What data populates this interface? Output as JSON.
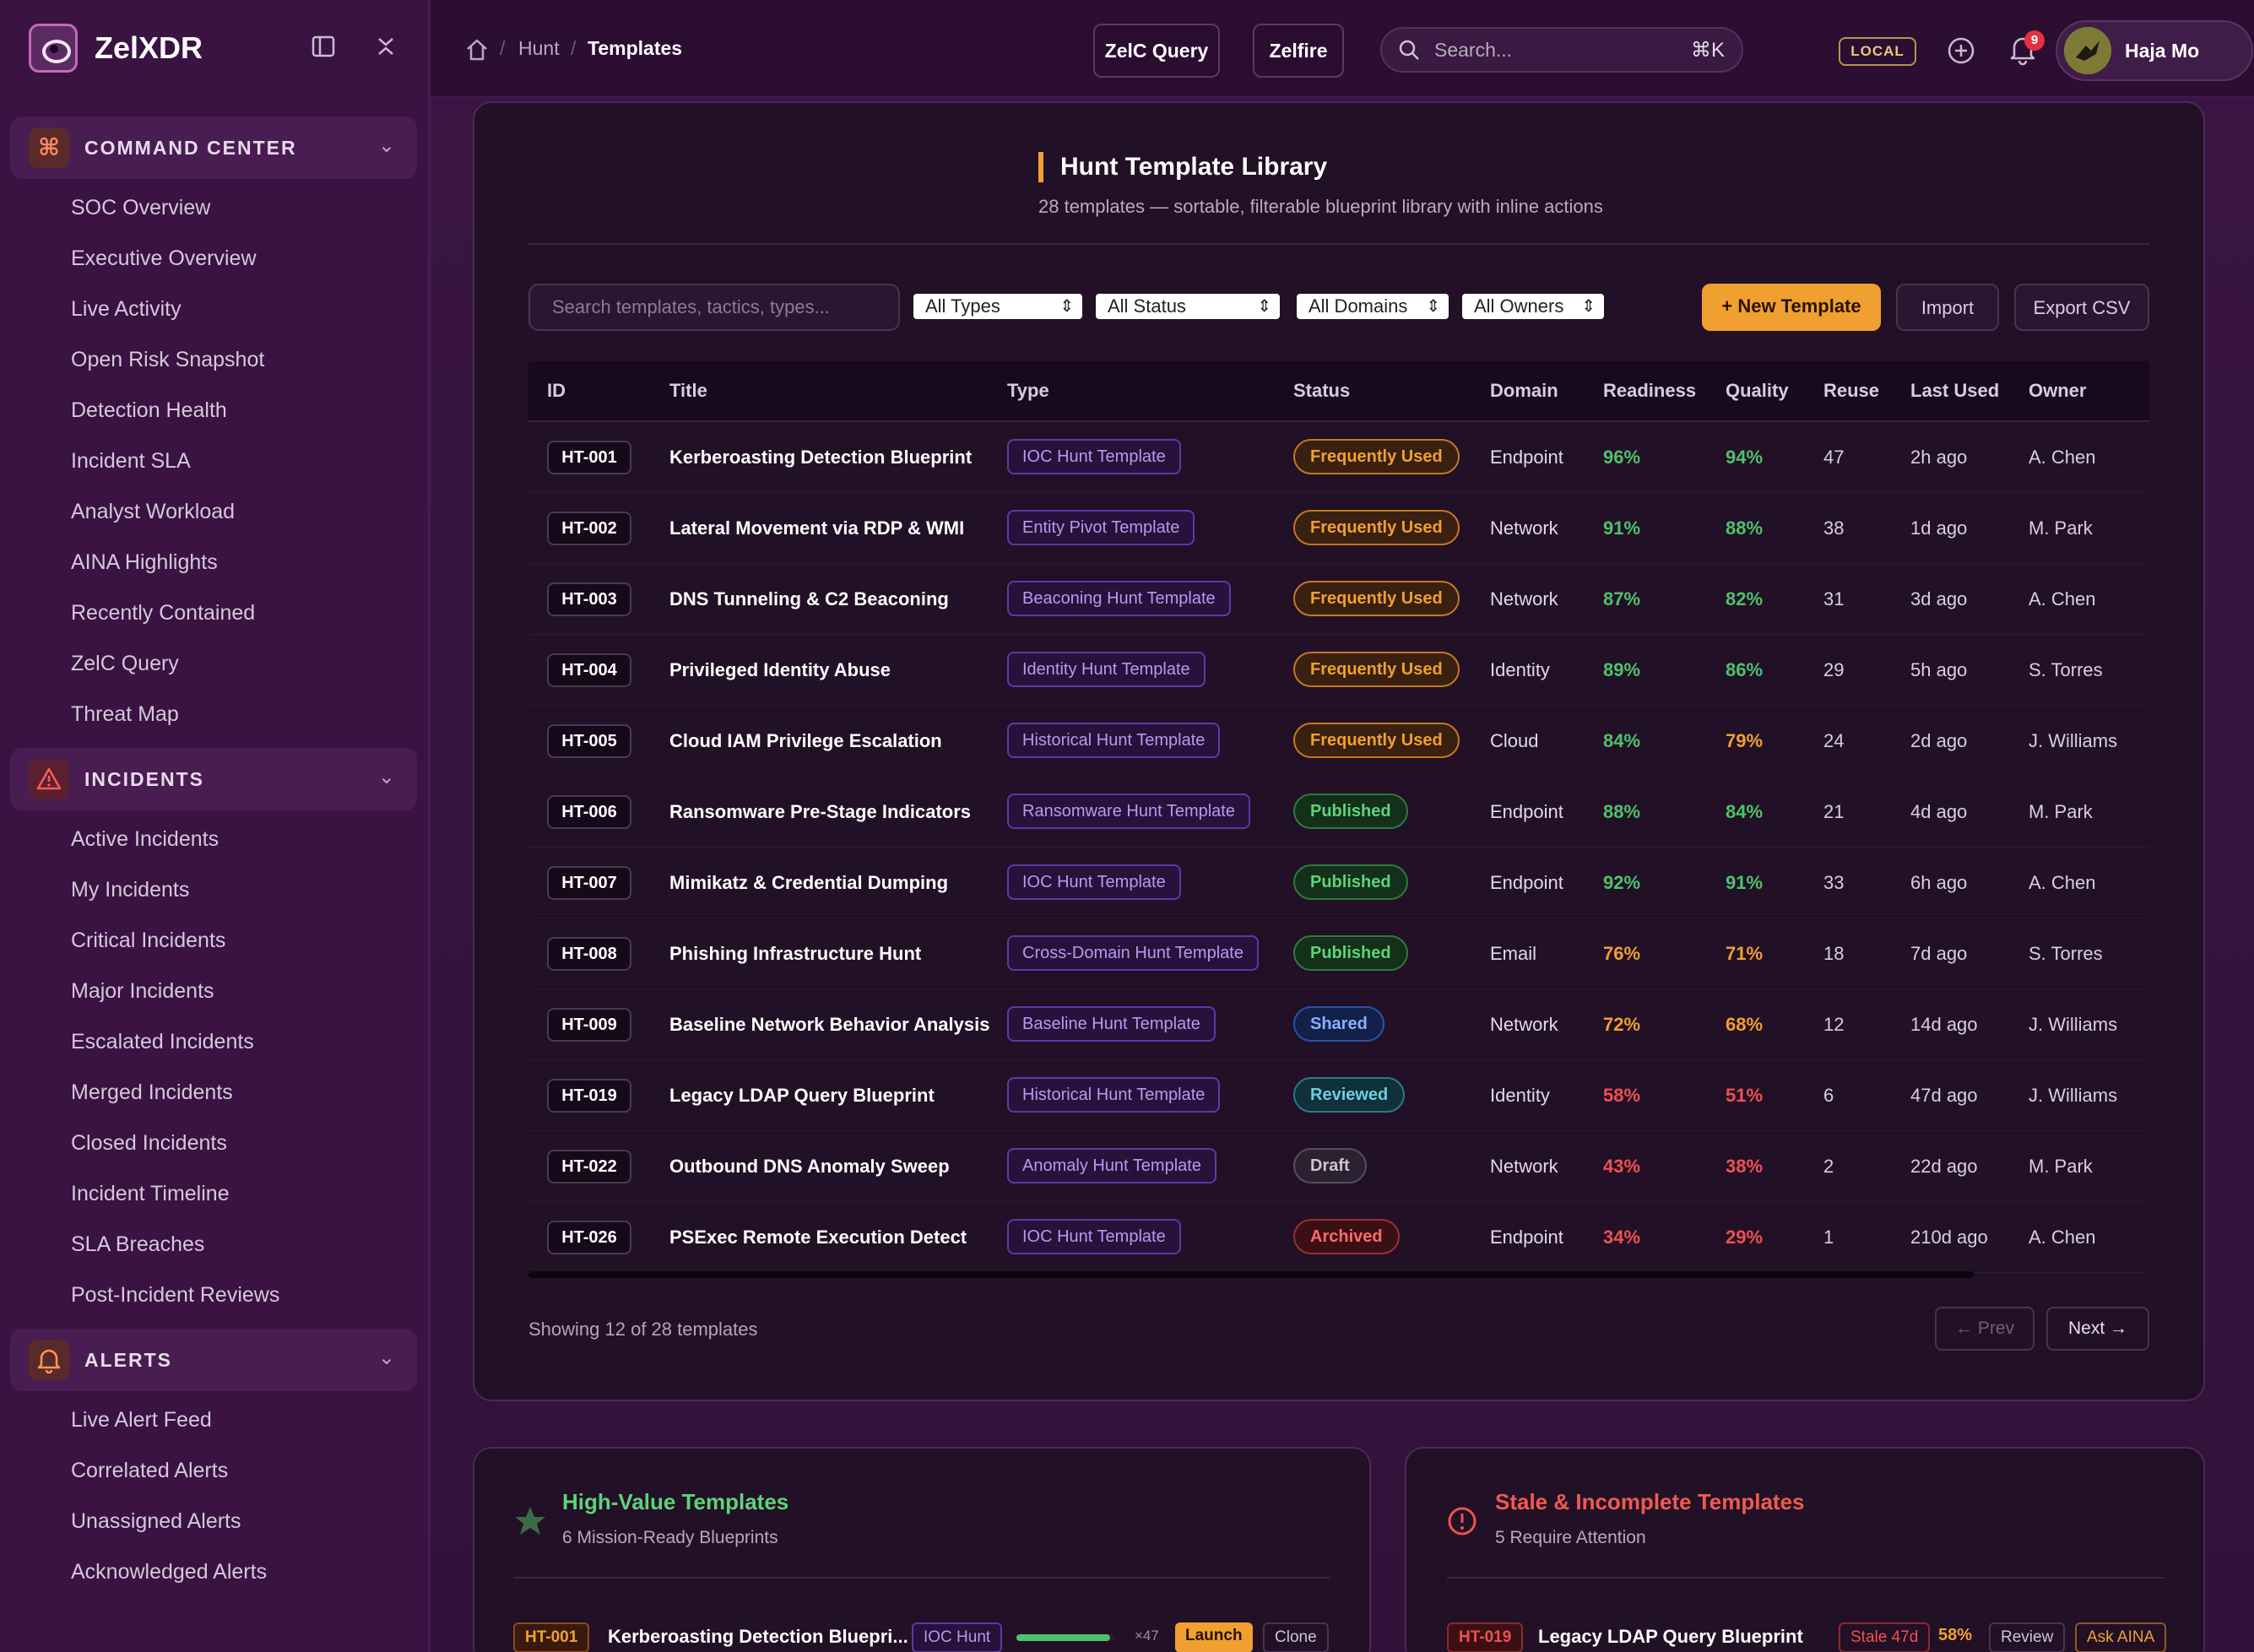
{
  "app": {
    "name": "ZelXDR"
  },
  "sidebar": {
    "sections": [
      {
        "label": "COMMAND CENTER",
        "icon": "command-icon",
        "items": [
          "SOC Overview",
          "Executive Overview",
          "Live Activity",
          "Open Risk Snapshot",
          "Detection Health",
          "Incident SLA",
          "Analyst Workload",
          "AINA Highlights",
          "Recently Contained",
          "ZelC Query",
          "Threat Map"
        ]
      },
      {
        "label": "INCIDENTS",
        "icon": "warning-icon",
        "items": [
          "Active Incidents",
          "My Incidents",
          "Critical Incidents",
          "Major Incidents",
          "Escalated Incidents",
          "Merged Incidents",
          "Closed Incidents",
          "Incident Timeline",
          "SLA Breaches",
          "Post-Incident Reviews"
        ]
      },
      {
        "label": "ALERTS",
        "icon": "bell-icon",
        "items": [
          "Live Alert Feed",
          "Correlated Alerts",
          "Unassigned Alerts",
          "Acknowledged Alerts"
        ]
      }
    ]
  },
  "topbar": {
    "breadcrumb": [
      "Hunt",
      "Templates"
    ],
    "zelc_query": "ZelC Query",
    "zelfire": "Zelfire",
    "search_placeholder": "Search...",
    "search_shortcut": "⌘K",
    "env_badge": "LOCAL",
    "notif_count": "9",
    "user_name": "Haja Mo"
  },
  "library": {
    "title": "Hunt Template Library",
    "subtitle": "28 templates — sortable, filterable blueprint library with inline actions",
    "search_placeholder": "Search templates, tactics, types...",
    "filters": [
      "All Types",
      "All Status",
      "All Domains",
      "All Owners"
    ],
    "new_template": "+ New Template",
    "import": "Import",
    "export": "Export CSV",
    "columns": [
      "ID",
      "Title",
      "Type",
      "Status",
      "Domain",
      "Readiness",
      "Quality",
      "Reuse",
      "Last Used",
      "Owner"
    ],
    "rows": [
      {
        "id": "HT-001",
        "title": "Kerberoasting Detection Blueprint",
        "type": "IOC Hunt Template",
        "status": "Frequently Used",
        "domain": "Endpoint",
        "readiness": "96%",
        "quality": "94%",
        "reuse": "47",
        "last": "2h ago",
        "owner": "A. Chen"
      },
      {
        "id": "HT-002",
        "title": "Lateral Movement via RDP & WMI",
        "type": "Entity Pivot Template",
        "status": "Frequently Used",
        "domain": "Network",
        "readiness": "91%",
        "quality": "88%",
        "reuse": "38",
        "last": "1d ago",
        "owner": "M. Park"
      },
      {
        "id": "HT-003",
        "title": "DNS Tunneling & C2 Beaconing",
        "type": "Beaconing Hunt Template",
        "status": "Frequently Used",
        "domain": "Network",
        "readiness": "87%",
        "quality": "82%",
        "reuse": "31",
        "last": "3d ago",
        "owner": "A. Chen"
      },
      {
        "id": "HT-004",
        "title": "Privileged Identity Abuse",
        "type": "Identity Hunt Template",
        "status": "Frequently Used",
        "domain": "Identity",
        "readiness": "89%",
        "quality": "86%",
        "reuse": "29",
        "last": "5h ago",
        "owner": "S. Torres"
      },
      {
        "id": "HT-005",
        "title": "Cloud IAM Privilege Escalation",
        "type": "Historical Hunt Template",
        "status": "Frequently Used",
        "domain": "Cloud",
        "readiness": "84%",
        "quality": "79%",
        "reuse": "24",
        "last": "2d ago",
        "owner": "J. Williams"
      },
      {
        "id": "HT-006",
        "title": "Ransomware Pre-Stage Indicators",
        "type": "Ransomware Hunt Template",
        "status": "Published",
        "domain": "Endpoint",
        "readiness": "88%",
        "quality": "84%",
        "reuse": "21",
        "last": "4d ago",
        "owner": "M. Park"
      },
      {
        "id": "HT-007",
        "title": "Mimikatz & Credential Dumping",
        "type": "IOC Hunt Template",
        "status": "Published",
        "domain": "Endpoint",
        "readiness": "92%",
        "quality": "91%",
        "reuse": "33",
        "last": "6h ago",
        "owner": "A. Chen"
      },
      {
        "id": "HT-008",
        "title": "Phishing Infrastructure Hunt",
        "type": "Cross-Domain Hunt Template",
        "status": "Published",
        "domain": "Email",
        "readiness": "76%",
        "quality": "71%",
        "reuse": "18",
        "last": "7d ago",
        "owner": "S. Torres"
      },
      {
        "id": "HT-009",
        "title": "Baseline Network Behavior Analysis",
        "type": "Baseline Hunt Template",
        "status": "Shared",
        "domain": "Network",
        "readiness": "72%",
        "quality": "68%",
        "reuse": "12",
        "last": "14d ago",
        "owner": "J. Williams"
      },
      {
        "id": "HT-019",
        "title": "Legacy LDAP Query Blueprint",
        "type": "Historical Hunt Template",
        "status": "Reviewed",
        "domain": "Identity",
        "readiness": "58%",
        "quality": "51%",
        "reuse": "6",
        "last": "47d ago",
        "owner": "J. Williams"
      },
      {
        "id": "HT-022",
        "title": "Outbound DNS Anomaly Sweep",
        "type": "Anomaly Hunt Template",
        "status": "Draft",
        "domain": "Network",
        "readiness": "43%",
        "quality": "38%",
        "reuse": "2",
        "last": "22d ago",
        "owner": "M. Park"
      },
      {
        "id": "HT-026",
        "title": "PSExec Remote Execution Detect",
        "type": "IOC Hunt Template",
        "status": "Archived",
        "domain": "Endpoint",
        "readiness": "34%",
        "quality": "29%",
        "reuse": "1",
        "last": "210d ago",
        "owner": "A. Chen"
      }
    ],
    "showing": "Showing 12 of 28 templates",
    "prev": "← Prev",
    "next": "Next →"
  },
  "high_value": {
    "title": "High-Value Templates",
    "subtitle": "6 Mission-Ready Blueprints",
    "item": {
      "id": "HT-001",
      "title": "Kerberoasting Detection Bluepri...",
      "tag": "IOC Hunt",
      "reuse": "×47",
      "launch": "Launch",
      "clone": "Clone",
      "progress": 0.96
    }
  },
  "stale": {
    "title": "Stale & Incomplete Templates",
    "subtitle": "5 Require Attention",
    "item": {
      "id": "HT-019",
      "title": "Legacy LDAP Query Blueprint",
      "stale": "Stale 47d",
      "pct": "58%",
      "review": "Review",
      "ask": "Ask AINA"
    }
  },
  "colors": {
    "accent": "#f0a030",
    "green": "#4cc36a",
    "amber": "#f0a030",
    "red": "#f05050",
    "purple": "#b59af0"
  }
}
